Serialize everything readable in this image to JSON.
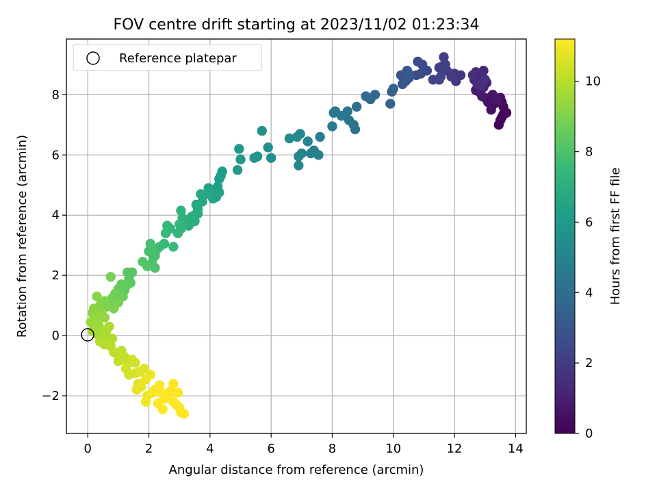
{
  "chart_data": {
    "type": "scatter",
    "title": "FOV centre drift starting at 2023/11/02 01:23:34",
    "xlabel": "Angular distance from reference (arcmin)",
    "ylabel": "Rotation from reference (arcmin)",
    "xlim": [
      -0.7,
      14.35
    ],
    "ylim": [
      -3.25,
      9.85
    ],
    "xticks": [
      0,
      2,
      4,
      6,
      8,
      10,
      12,
      14
    ],
    "yticks": [
      -2,
      0,
      2,
      4,
      6,
      8
    ],
    "xtick_labels": [
      "0",
      "2",
      "4",
      "6",
      "8",
      "10",
      "12",
      "14"
    ],
    "ytick_labels": [
      "−2",
      "0",
      "2",
      "4",
      "6",
      "8"
    ],
    "grid": true,
    "legend": {
      "position": "top-left",
      "entries": [
        "Reference platepar"
      ]
    },
    "reference_point": {
      "x": 0,
      "y": 0,
      "label": "Reference platepar"
    },
    "colorbar": {
      "label": "Hours from first FF file",
      "colormap": "viridis",
      "range": [
        0,
        11.2
      ],
      "ticks": [
        0,
        2,
        4,
        6,
        8,
        10
      ],
      "tick_labels": [
        "0",
        "2",
        "4",
        "6",
        "8",
        "10"
      ]
    },
    "colors": {
      "viridis": [
        "#440154",
        "#482878",
        "#3e4989",
        "#31688e",
        "#26828e",
        "#1f9e89",
        "#35b779",
        "#6ece58",
        "#b5de2b",
        "#fde725"
      ],
      "grid": "#b0b0b0"
    },
    "series": [
      {
        "points": [
          [
            13.45,
            7.0,
            0.05
          ],
          [
            13.5,
            7.15,
            0.1
          ],
          [
            13.55,
            7.25,
            0.15
          ],
          [
            13.6,
            7.35,
            0.2
          ],
          [
            13.7,
            7.4,
            0.25
          ],
          [
            13.6,
            7.6,
            0.3
          ],
          [
            13.55,
            7.75,
            0.35
          ],
          [
            13.5,
            7.9,
            0.4
          ],
          [
            13.3,
            7.7,
            0.45
          ],
          [
            13.2,
            7.5,
            0.5
          ],
          [
            13.1,
            7.75,
            0.55
          ],
          [
            13.0,
            7.9,
            0.6
          ],
          [
            13.25,
            8.0,
            0.65
          ],
          [
            13.4,
            7.85,
            0.7
          ],
          [
            12.9,
            7.95,
            0.75
          ],
          [
            12.8,
            8.1,
            0.8
          ],
          [
            12.7,
            8.15,
            0.85
          ],
          [
            12.95,
            8.25,
            0.9
          ],
          [
            13.05,
            8.4,
            1.0
          ],
          [
            12.9,
            8.55,
            1.05
          ],
          [
            12.75,
            8.45,
            1.1
          ],
          [
            12.65,
            8.5,
            1.15
          ],
          [
            12.8,
            8.6,
            1.2
          ],
          [
            12.7,
            8.75,
            1.25
          ],
          [
            12.95,
            8.8,
            1.3
          ],
          [
            12.85,
            8.7,
            1.35
          ],
          [
            12.75,
            8.35,
            1.4
          ],
          [
            12.6,
            8.65,
            1.5
          ],
          [
            12.9,
            8.3,
            1.55
          ],
          [
            13.0,
            8.5,
            1.6
          ],
          [
            12.2,
            8.65,
            1.8
          ],
          [
            12.05,
            8.45,
            1.85
          ],
          [
            12.0,
            8.7,
            1.9
          ],
          [
            11.9,
            8.6,
            1.95
          ],
          [
            11.75,
            8.8,
            2.0
          ],
          [
            11.6,
            8.95,
            2.05
          ],
          [
            11.5,
            8.9,
            2.1
          ],
          [
            11.65,
            9.25,
            2.15
          ],
          [
            11.7,
            9.0,
            2.2
          ],
          [
            11.55,
            8.6,
            2.25
          ],
          [
            11.3,
            8.5,
            2.3
          ],
          [
            11.5,
            8.5,
            2.35
          ],
          [
            11.1,
            8.8,
            2.5
          ],
          [
            10.95,
            9.0,
            2.55
          ],
          [
            10.8,
            9.1,
            2.6
          ],
          [
            10.9,
            8.7,
            2.65
          ],
          [
            10.75,
            8.65,
            2.7
          ],
          [
            10.5,
            8.7,
            2.75
          ],
          [
            10.45,
            8.8,
            2.8
          ],
          [
            10.3,
            8.6,
            2.85
          ],
          [
            10.25,
            8.65,
            2.95
          ],
          [
            10.4,
            8.45,
            3.0
          ],
          [
            10.3,
            8.35,
            3.05
          ],
          [
            10.5,
            8.55,
            3.1
          ],
          [
            10.45,
            8.75,
            3.15
          ],
          [
            10.0,
            8.2,
            3.4
          ],
          [
            9.95,
            8.1,
            3.45
          ],
          [
            9.9,
            7.7,
            3.5
          ],
          [
            9.4,
            8.0,
            3.7
          ],
          [
            9.25,
            7.85,
            3.8
          ],
          [
            9.1,
            7.95,
            3.85
          ],
          [
            8.8,
            7.6,
            4.1
          ],
          [
            8.75,
            6.85,
            4.15
          ],
          [
            8.7,
            7.0,
            4.2
          ],
          [
            8.55,
            7.15,
            4.25
          ],
          [
            8.5,
            7.45,
            4.3
          ],
          [
            8.3,
            7.3,
            4.4
          ],
          [
            8.1,
            7.45,
            4.5
          ],
          [
            8.05,
            7.4,
            4.55
          ],
          [
            8.0,
            6.95,
            4.6
          ],
          [
            7.6,
            6.6,
            4.8
          ],
          [
            7.55,
            6.0,
            4.85
          ],
          [
            7.4,
            6.15,
            4.9
          ],
          [
            7.3,
            6.05,
            5.0
          ],
          [
            7.2,
            6.45,
            5.05
          ],
          [
            7.0,
            6.05,
            5.1
          ],
          [
            6.9,
            5.65,
            5.2
          ],
          [
            6.9,
            5.95,
            5.25
          ],
          [
            6.95,
            6.7,
            5.3
          ],
          [
            6.85,
            6.6,
            5.35
          ],
          [
            6.6,
            6.55,
            5.4
          ],
          [
            6.0,
            5.9,
            5.55
          ],
          [
            5.9,
            6.25,
            5.6
          ],
          [
            5.7,
            6.8,
            5.65
          ],
          [
            5.55,
            5.95,
            5.75
          ],
          [
            5.45,
            5.9,
            5.8
          ],
          [
            5.0,
            5.85,
            5.9
          ],
          [
            4.95,
            6.2,
            5.95
          ],
          [
            4.9,
            5.5,
            6.0
          ],
          [
            4.35,
            5.3,
            6.1
          ],
          [
            4.4,
            5.45,
            6.15
          ],
          [
            4.3,
            5.2,
            6.2
          ],
          [
            4.25,
            4.95,
            6.25
          ],
          [
            4.15,
            4.85,
            6.3
          ],
          [
            4.2,
            4.6,
            6.35
          ],
          [
            4.3,
            4.75,
            6.4
          ],
          [
            4.1,
            4.55,
            6.45
          ],
          [
            3.95,
            4.9,
            6.5
          ],
          [
            4.05,
            4.65,
            6.55
          ],
          [
            3.9,
            4.7,
            6.6
          ],
          [
            3.7,
            4.7,
            6.65
          ],
          [
            3.75,
            4.45,
            6.7
          ],
          [
            3.6,
            4.2,
            6.75
          ],
          [
            3.55,
            4.35,
            6.8
          ],
          [
            3.6,
            4.05,
            6.85
          ],
          [
            3.5,
            4.0,
            6.9
          ],
          [
            3.4,
            3.95,
            6.95
          ],
          [
            3.5,
            3.8,
            7.0
          ],
          [
            3.3,
            3.65,
            7.05
          ],
          [
            3.2,
            3.75,
            7.1
          ],
          [
            3.1,
            3.9,
            7.15
          ],
          [
            3.05,
            4.15,
            7.2
          ],
          [
            3.05,
            3.55,
            7.25
          ],
          [
            2.95,
            3.4,
            7.3
          ],
          [
            3.0,
            3.7,
            7.35
          ],
          [
            2.7,
            3.55,
            7.4
          ],
          [
            2.6,
            3.65,
            7.45
          ],
          [
            2.55,
            3.4,
            7.5
          ],
          [
            2.8,
            2.95,
            7.55
          ],
          [
            2.5,
            3.05,
            7.6
          ],
          [
            2.35,
            2.95,
            7.65
          ],
          [
            2.25,
            2.85,
            7.7
          ],
          [
            2.2,
            2.65,
            7.75
          ],
          [
            2.15,
            2.6,
            7.8
          ],
          [
            2.05,
            3.05,
            7.85
          ],
          [
            2.1,
            2.9,
            7.9
          ],
          [
            2.0,
            2.8,
            7.95
          ],
          [
            2.1,
            2.4,
            8.0
          ],
          [
            2.2,
            2.25,
            8.05
          ],
          [
            1.95,
            2.3,
            8.1
          ],
          [
            1.8,
            2.45,
            8.15
          ],
          [
            1.45,
            2.1,
            8.2
          ],
          [
            1.3,
            2.1,
            8.25
          ],
          [
            1.35,
            1.9,
            8.3
          ],
          [
            1.4,
            1.75,
            8.35
          ],
          [
            1.25,
            1.65,
            8.4
          ],
          [
            1.2,
            1.5,
            8.45
          ],
          [
            1.1,
            1.7,
            8.5
          ],
          [
            1.0,
            1.55,
            8.55
          ],
          [
            0.95,
            1.3,
            8.6
          ],
          [
            1.15,
            1.3,
            8.65
          ],
          [
            0.9,
            1.4,
            8.7
          ],
          [
            0.8,
            1.25,
            8.75
          ],
          [
            0.7,
            1.1,
            8.8
          ],
          [
            0.75,
            1.95,
            8.85
          ],
          [
            1.0,
            1.1,
            8.9
          ],
          [
            0.85,
            0.9,
            8.95
          ],
          [
            0.6,
            0.95,
            9.0
          ],
          [
            0.55,
            1.15,
            9.05
          ],
          [
            0.4,
            1.0,
            9.1
          ],
          [
            0.3,
            1.3,
            9.15
          ],
          [
            0.2,
            0.9,
            9.2
          ],
          [
            0.15,
            0.75,
            9.25
          ],
          [
            0.45,
            0.75,
            9.3
          ],
          [
            0.55,
            0.6,
            9.35
          ],
          [
            0.25,
            0.55,
            9.4
          ],
          [
            0.1,
            0.45,
            9.45
          ],
          [
            0.35,
            0.35,
            9.5
          ],
          [
            0.45,
            0.2,
            9.55
          ],
          [
            0.3,
            0.05,
            9.6
          ],
          [
            0.15,
            0.15,
            9.65
          ],
          [
            0.5,
            -0.05,
            9.7
          ],
          [
            0.6,
            0.15,
            9.75
          ],
          [
            0.7,
            0.3,
            9.8
          ],
          [
            0.8,
            -0.1,
            9.85
          ],
          [
            0.55,
            -0.3,
            9.9
          ],
          [
            0.4,
            -0.2,
            9.95
          ],
          [
            0.75,
            -0.35,
            10.0
          ],
          [
            0.85,
            -0.55,
            10.05
          ],
          [
            0.95,
            -0.6,
            10.1
          ],
          [
            1.1,
            -0.5,
            10.15
          ],
          [
            1.2,
            -0.7,
            10.2
          ],
          [
            1.0,
            -0.85,
            10.25
          ],
          [
            1.3,
            -0.95,
            10.3
          ],
          [
            1.45,
            -0.8,
            10.35
          ],
          [
            1.55,
            -0.9,
            10.4
          ],
          [
            1.25,
            -1.1,
            10.45
          ],
          [
            1.35,
            -1.3,
            10.5
          ],
          [
            1.55,
            -1.25,
            10.55
          ],
          [
            1.7,
            -1.2,
            10.6
          ],
          [
            1.85,
            -1.1,
            10.65
          ],
          [
            1.65,
            -1.6,
            10.7
          ],
          [
            1.6,
            -1.8,
            10.75
          ],
          [
            1.75,
            -1.7,
            10.8
          ],
          [
            1.9,
            -1.45,
            10.85
          ],
          [
            2.05,
            -1.3,
            10.9
          ],
          [
            1.95,
            -2.0,
            10.95
          ],
          [
            1.9,
            -2.2,
            11.0
          ],
          [
            2.1,
            -1.9,
            11.05
          ],
          [
            2.2,
            -1.8,
            11.1
          ],
          [
            2.35,
            -1.65,
            11.15
          ],
          [
            2.4,
            -1.9,
            11.2
          ],
          [
            2.5,
            -2.1,
            11.2
          ],
          [
            2.3,
            -2.25,
            11.2
          ],
          [
            2.45,
            -2.45,
            11.2
          ],
          [
            2.6,
            -2.0,
            11.2
          ],
          [
            2.7,
            -1.85,
            11.2
          ],
          [
            2.8,
            -2.2,
            11.2
          ],
          [
            2.55,
            -1.95,
            11.2
          ],
          [
            2.8,
            -1.6,
            11.2
          ],
          [
            2.9,
            -2.3,
            11.2
          ],
          [
            3.0,
            -2.4,
            11.2
          ],
          [
            2.95,
            -1.9,
            11.2
          ],
          [
            3.05,
            -2.55,
            11.2
          ],
          [
            3.15,
            -2.6,
            11.2
          ]
        ]
      }
    ]
  }
}
